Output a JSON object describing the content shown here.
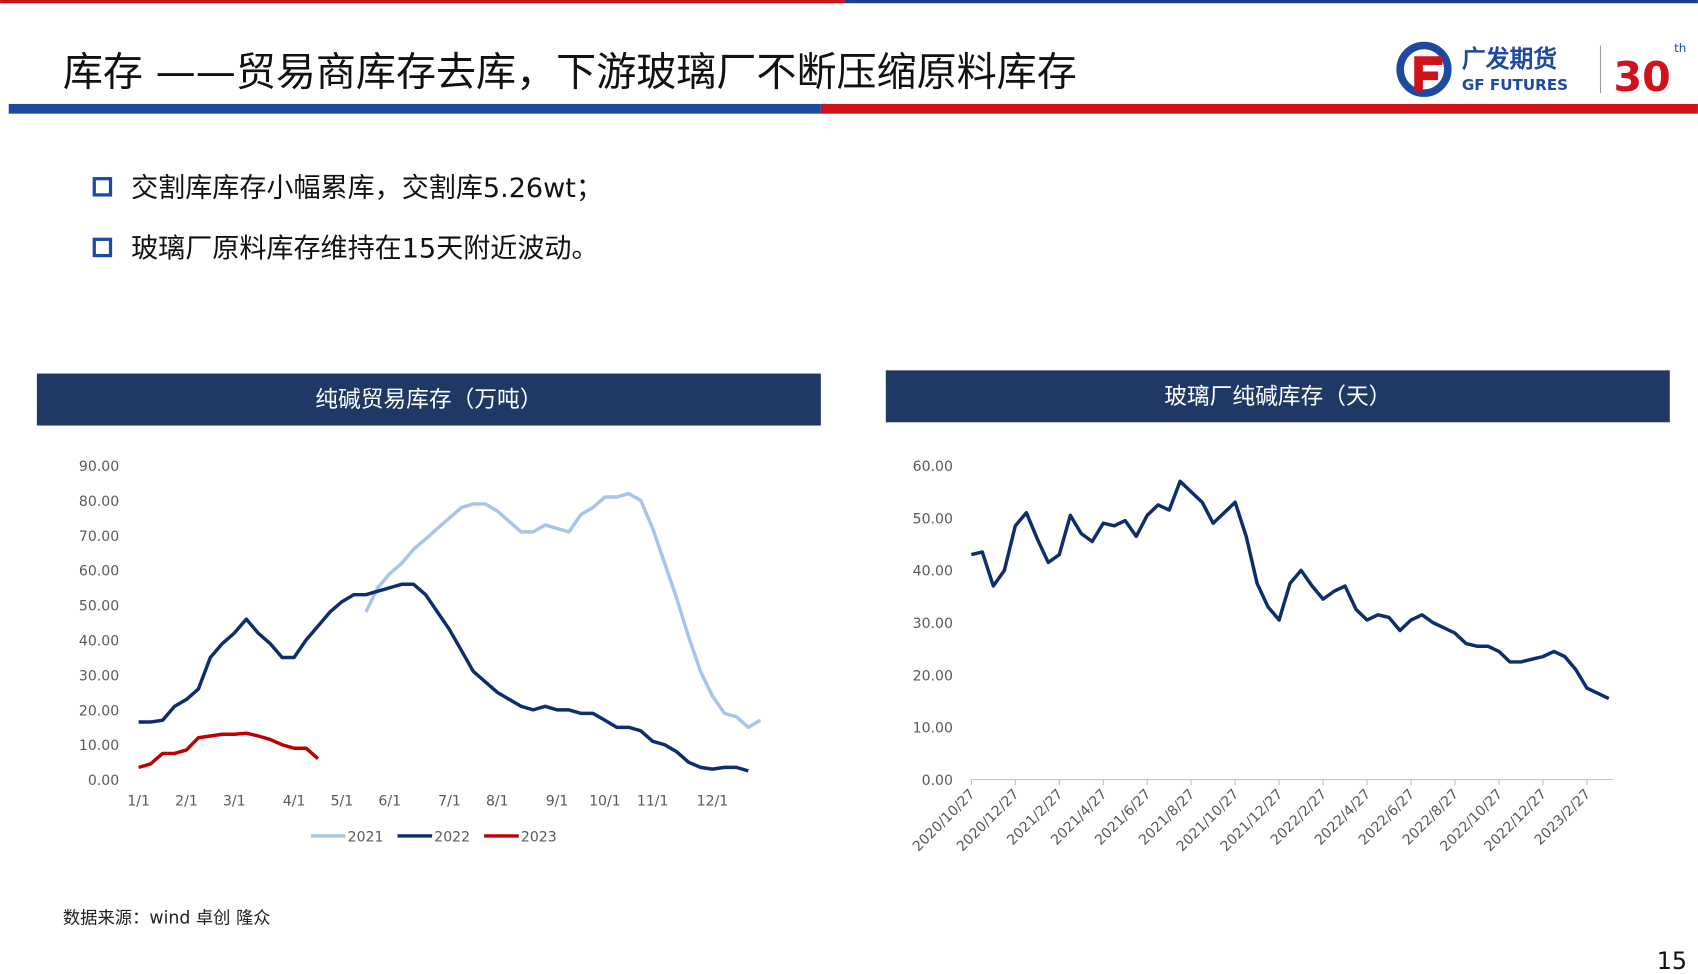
{
  "header": {
    "title": "库存 ——贸易商库存去库，下游玻璃厂不断压缩原料库存",
    "logo_cn": "广发期货",
    "logo_en": "GF FUTURES",
    "logo_num": "30",
    "logo_sup": "th"
  },
  "bullets": [
    "交割库库存小幅累库，交割库5.26wt；",
    "玻璃厂原料库存维持在15天附近波动。"
  ],
  "source": "数据来源：wind 卓创 隆众",
  "page_number": "15",
  "chart_data": [
    {
      "type": "line",
      "title": "纯碱贸易库存（万吨）",
      "categories": [
        "1/1",
        null,
        null,
        null,
        "2/1",
        null,
        null,
        null,
        "3/1",
        null,
        null,
        null,
        null,
        "4/1",
        null,
        null,
        null,
        "5/1",
        null,
        null,
        null,
        "6/1",
        null,
        null,
        null,
        null,
        "7/1",
        null,
        null,
        null,
        "8/1",
        null,
        null,
        null,
        null,
        "9/1",
        null,
        null,
        null,
        "10/1",
        null,
        null,
        null,
        "11/1",
        null,
        null,
        null,
        null,
        "12/1",
        null,
        null,
        null,
        null
      ],
      "series": [
        {
          "name": "2021",
          "color": "#a9c4e8",
          "values": [
            null,
            null,
            null,
            null,
            null,
            null,
            null,
            null,
            null,
            null,
            null,
            null,
            null,
            null,
            null,
            null,
            null,
            null,
            null,
            48,
            55,
            59,
            62,
            66,
            69,
            72,
            75,
            78,
            79,
            79,
            77,
            74,
            71,
            71,
            73,
            72,
            71,
            76,
            78,
            81,
            81,
            82,
            80,
            72,
            62,
            52,
            41,
            31,
            24,
            19,
            18,
            15,
            17
          ]
        },
        {
          "name": "2022",
          "color": "#0d2d6c",
          "values": [
            16.5,
            16.5,
            17,
            21,
            23,
            26,
            35,
            39,
            42,
            46,
            42,
            39,
            35,
            35,
            40,
            44,
            48,
            51,
            53,
            53,
            54,
            55,
            56,
            56,
            53,
            48,
            43,
            37,
            31,
            28,
            25,
            23,
            21,
            20,
            21,
            20,
            20,
            19,
            19,
            17,
            15,
            15,
            14,
            11,
            10,
            8,
            5,
            3.5,
            3,
            3.5,
            3.5,
            2.5,
            null
          ]
        },
        {
          "name": "2023",
          "color": "#c00000",
          "values": [
            3.5,
            4.5,
            7.5,
            7.5,
            8.5,
            12,
            12.5,
            13,
            13,
            13.3,
            12.5,
            11.5,
            10,
            9,
            9,
            6,
            null,
            null,
            null,
            null,
            null,
            null,
            null,
            null,
            null,
            null,
            null,
            null,
            null,
            null,
            null,
            null,
            null,
            null,
            null,
            null,
            null,
            null,
            null,
            null,
            null,
            null,
            null,
            null,
            null,
            null,
            null,
            null,
            null,
            null,
            null,
            null,
            null
          ]
        }
      ],
      "ylim": [
        0,
        90
      ],
      "yticks": [
        {
          "value": 0,
          "label": "0.00"
        },
        {
          "value": 10,
          "label": "10.00"
        },
        {
          "value": 20,
          "label": "20.00"
        },
        {
          "value": 30,
          "label": "30.00"
        },
        {
          "value": 40,
          "label": "40.00"
        },
        {
          "value": 50,
          "label": "50.00"
        },
        {
          "value": 60,
          "label": "60.00"
        },
        {
          "value": 70,
          "label": "70.00"
        },
        {
          "value": 80,
          "label": "80.00"
        },
        {
          "value": 90,
          "label": "90.00"
        }
      ],
      "grid": false,
      "legend": "bottom"
    },
    {
      "type": "line",
      "title": "玻璃厂纯碱库存（天）",
      "categories": [
        "2020/10/27",
        null,
        null,
        null,
        "2020/12/27",
        null,
        null,
        null,
        "2021/2/27",
        null,
        null,
        null,
        "2021/4/27",
        null,
        null,
        null,
        "2021/6/27",
        null,
        null,
        null,
        "2021/8/27",
        null,
        null,
        null,
        "2021/10/27",
        null,
        null,
        null,
        "2021/12/27",
        null,
        null,
        null,
        "2022/2/27",
        null,
        null,
        null,
        "2022/4/27",
        null,
        null,
        null,
        "2022/6/27",
        null,
        null,
        null,
        "2022/8/27",
        null,
        null,
        null,
        "2022/10/27",
        null,
        null,
        null,
        "2022/12/27",
        null,
        null,
        null,
        "2023/2/27",
        null,
        null
      ],
      "series": [
        {
          "color": "#0d2d6c",
          "values": [
            43,
            43.5,
            37,
            40,
            48.5,
            51,
            46,
            41.5,
            43,
            50.5,
            47,
            45.5,
            49,
            48.5,
            49.5,
            46.5,
            50.5,
            52.5,
            51.5,
            57,
            55,
            53,
            49,
            51,
            53,
            46.5,
            37.5,
            33,
            30.5,
            37.5,
            40,
            37,
            34.5,
            36,
            37,
            32.5,
            30.5,
            31.5,
            31,
            28.5,
            30.5,
            31.5,
            30,
            29,
            28,
            26,
            25.5,
            25.5,
            24.5,
            22.5,
            22.5,
            23,
            23.5,
            24.5,
            23.5,
            21,
            17.5,
            16.5,
            15.5
          ]
        }
      ],
      "ylim": [
        0,
        60
      ],
      "yticks": [
        {
          "value": 0,
          "label": "0.00"
        },
        {
          "value": 10,
          "label": "10.00"
        },
        {
          "value": 20,
          "label": "20.00"
        },
        {
          "value": 30,
          "label": "30.00"
        },
        {
          "value": 40,
          "label": "40.00"
        },
        {
          "value": 50,
          "label": "50.00"
        },
        {
          "value": 60,
          "label": "60.00"
        }
      ],
      "grid": false
    }
  ]
}
